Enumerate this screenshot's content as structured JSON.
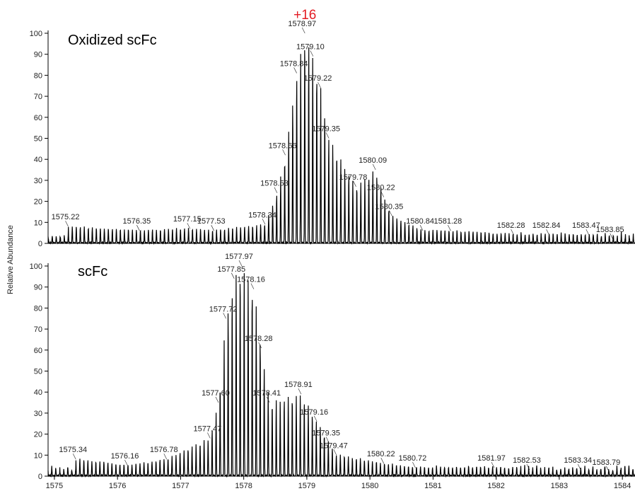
{
  "ylabel": "Relative Abundance",
  "shift_annotation": {
    "text": "+16",
    "color": "#e31b23"
  },
  "x_ticks": [
    "1575",
    "1576",
    "1577",
    "1578",
    "1579",
    "1580",
    "1581",
    "1582",
    "1583",
    "1584"
  ],
  "y_ticks": [
    "0",
    "10",
    "20",
    "30",
    "40",
    "50",
    "60",
    "70",
    "80",
    "90",
    "100"
  ],
  "chart_data": [
    {
      "type": "line",
      "title": "Oxidized scFc",
      "xlabel": "",
      "ylabel": "Relative Abundance",
      "xlim": [
        1574.9,
        1584.2
      ],
      "ylim": [
        0,
        100
      ],
      "grid": false,
      "line_color": "#000000",
      "labeled_peaks": [
        {
          "x": 1575.22,
          "y": 8
        },
        {
          "x": 1576.35,
          "y": 6
        },
        {
          "x": 1577.15,
          "y": 7
        },
        {
          "x": 1577.53,
          "y": 6
        },
        {
          "x": 1578.34,
          "y": 9
        },
        {
          "x": 1578.53,
          "y": 24
        },
        {
          "x": 1578.66,
          "y": 42
        },
        {
          "x": 1578.84,
          "y": 81
        },
        {
          "x": 1578.97,
          "y": 100
        },
        {
          "x": 1579.1,
          "y": 89
        },
        {
          "x": 1579.22,
          "y": 74
        },
        {
          "x": 1579.35,
          "y": 50
        },
        {
          "x": 1579.78,
          "y": 27
        },
        {
          "x": 1580.09,
          "y": 35
        },
        {
          "x": 1580.22,
          "y": 22
        },
        {
          "x": 1580.35,
          "y": 13
        },
        {
          "x": 1580.84,
          "y": 6
        },
        {
          "x": 1581.28,
          "y": 6
        },
        {
          "x": 1582.28,
          "y": 4
        },
        {
          "x": 1582.84,
          "y": 4
        },
        {
          "x": 1583.47,
          "y": 4
        },
        {
          "x": 1583.85,
          "y": 2
        }
      ],
      "annotation_labels": [
        "1575.22",
        "1576.35",
        "1577.15",
        "1577.53",
        "1578.34",
        "1578.53",
        "1578.66",
        "1578.84",
        "1578.97",
        "1579.10",
        "1579.22",
        "1579.35",
        "1579.78",
        "1580.09",
        "1580.22",
        "1580.35",
        "1580.84",
        "1581.28",
        "1582.28",
        "1582.84",
        "1583.47",
        "1583.85"
      ]
    },
    {
      "type": "line",
      "title": "scFc",
      "xlabel": "",
      "ylabel": "Relative Abundance",
      "xlim": [
        1574.9,
        1584.2
      ],
      "ylim": [
        0,
        100
      ],
      "grid": false,
      "line_color": "#000000",
      "labeled_peaks": [
        {
          "x": 1575.34,
          "y": 8
        },
        {
          "x": 1576.16,
          "y": 5
        },
        {
          "x": 1576.78,
          "y": 8
        },
        {
          "x": 1577.47,
          "y": 18
        },
        {
          "x": 1577.6,
          "y": 35
        },
        {
          "x": 1577.72,
          "y": 75
        },
        {
          "x": 1577.85,
          "y": 94
        },
        {
          "x": 1577.97,
          "y": 100
        },
        {
          "x": 1578.16,
          "y": 89
        },
        {
          "x": 1578.28,
          "y": 61
        },
        {
          "x": 1578.41,
          "y": 35
        },
        {
          "x": 1578.91,
          "y": 39
        },
        {
          "x": 1579.16,
          "y": 26
        },
        {
          "x": 1579.35,
          "y": 16
        },
        {
          "x": 1579.47,
          "y": 10
        },
        {
          "x": 1580.22,
          "y": 6
        },
        {
          "x": 1580.72,
          "y": 4
        },
        {
          "x": 1581.97,
          "y": 4
        },
        {
          "x": 1582.53,
          "y": 3
        },
        {
          "x": 1583.34,
          "y": 3
        },
        {
          "x": 1583.79,
          "y": 2
        }
      ],
      "annotation_labels": [
        "1575.34",
        "1576.16",
        "1576.78",
        "1577.47",
        "1577.60",
        "1577.72",
        "1577.85",
        "1577.97",
        "1578.16",
        "1578.28",
        "1578.41",
        "1578.91",
        "1579.16",
        "1579.35",
        "1579.47",
        "1580.22",
        "1580.72",
        "1581.97",
        "1582.53",
        "1583.34",
        "1583.79"
      ]
    }
  ]
}
